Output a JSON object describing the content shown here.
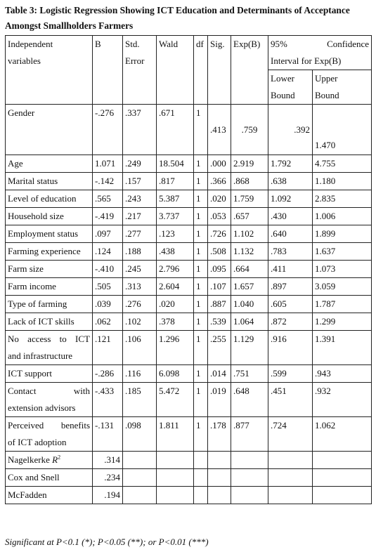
{
  "caption_line1": "Table 3: Logistic Regression Showing ICT Education and Determinants of Acceptance",
  "caption_line2": "Amongst Smallholders Farmers",
  "headers": {
    "var": [
      "Independent",
      "variables"
    ],
    "b": "B",
    "se": [
      "Std.",
      "Error"
    ],
    "wald": "Wald",
    "df": "df",
    "sig": "Sig.",
    "exp": "Exp(B)",
    "ci_left": "95%",
    "ci_right": "Confidence",
    "ci_line2": "Interval for Exp(B)",
    "lower": [
      "Lower",
      "Bound"
    ],
    "upper": [
      "Upper",
      "Bound"
    ]
  },
  "rows": [
    {
      "var": [
        "Gender"
      ],
      "b": "-.276",
      "se": ".337",
      "wald": ".671",
      "df": "1",
      "sig": ".413",
      "exp": ".759",
      "lower": ".392",
      "upper": "1.470"
    },
    {
      "var": [
        "Age"
      ],
      "b": "1.071",
      "se": ".249",
      "wald": "18.504",
      "df": "1",
      "sig": ".000",
      "exp": "2.919",
      "lower": "1.792",
      "upper": "4.755"
    },
    {
      "var": [
        "Marital status"
      ],
      "b": "-.142",
      "se": ".157",
      "wald": ".817",
      "df": "1",
      "sig": ".366",
      "exp": ".868",
      "lower": ".638",
      "upper": "1.180"
    },
    {
      "var": [
        "Level of education"
      ],
      "b": ".565",
      "se": ".243",
      "wald": "5.387",
      "df": "1",
      "sig": ".020",
      "exp": "1.759",
      "lower": "1.092",
      "upper": "2.835"
    },
    {
      "var": [
        "Household size"
      ],
      "b": "-.419",
      "se": ".217",
      "wald": "3.737",
      "df": "1",
      "sig": ".053",
      "exp": ".657",
      "lower": ".430",
      "upper": "1.006"
    },
    {
      "var": [
        "Employment status"
      ],
      "b": ".097",
      "se": ".277",
      "wald": ".123",
      "df": "1",
      "sig": ".726",
      "exp": "1.102",
      "lower": ".640",
      "upper": "1.899"
    },
    {
      "var": [
        "Farming experience"
      ],
      "b": ".124",
      "se": ".188",
      "wald": ".438",
      "df": "1",
      "sig": ".508",
      "exp": "1.132",
      "lower": ".783",
      "upper": "1.637"
    },
    {
      "var": [
        "Farm size"
      ],
      "b": "-.410",
      "se": ".245",
      "wald": "2.796",
      "df": "1",
      "sig": ".095",
      "exp": ".664",
      "lower": ".411",
      "upper": "1.073"
    },
    {
      "var": [
        "Farm income"
      ],
      "b": ".505",
      "se": ".313",
      "wald": "2.604",
      "df": "1",
      "sig": ".107",
      "exp": "1.657",
      "lower": ".897",
      "upper": "3.059"
    },
    {
      "var": [
        "Type of farming"
      ],
      "b": ".039",
      "se": ".276",
      "wald": ".020",
      "df": "1",
      "sig": ".887",
      "exp": "1.040",
      "lower": ".605",
      "upper": "1.787"
    },
    {
      "var": [
        "Lack of ICT skills"
      ],
      "b": ".062",
      "se": ".102",
      "wald": ".378",
      "df": "1",
      "sig": ".539",
      "exp": "1.064",
      "lower": ".872",
      "upper": "1.299"
    },
    {
      "var": [
        "No access to ICT",
        "and infrastructure"
      ],
      "b": ".121",
      "se": ".106",
      "wald": "1.296",
      "df": "1",
      "sig": ".255",
      "exp": "1.129",
      "lower": ".916",
      "upper": "1.391"
    },
    {
      "var": [
        "ICT support"
      ],
      "b": "-.286",
      "se": ".116",
      "wald": "6.098",
      "df": "1",
      "sig": ".014",
      "exp": ".751",
      "lower": ".599",
      "upper": ".943"
    },
    {
      "var": [
        "Contact with",
        "extension advisors"
      ],
      "b": "-.433",
      "se": ".185",
      "wald": "5.472",
      "df": "1",
      "sig": ".019",
      "exp": ".648",
      "lower": ".451",
      "upper": ".932"
    },
    {
      "var": [
        "Perceived benefits",
        "of ICT adoption"
      ],
      "b": "-.131",
      "se": ".098",
      "wald": "1.811",
      "df": "1",
      "sig": ".178",
      "exp": ".877",
      "lower": ".724",
      "upper": "1.062"
    }
  ],
  "fit": [
    {
      "label": "Nagelkerke R",
      "sup": "2",
      "value": ".314"
    },
    {
      "label": "Cox and Snell",
      "sup": "",
      "value": ".234"
    },
    {
      "label": "McFadden",
      "sup": "",
      "value": ".194"
    }
  ],
  "footnote": "Significant at P<0.1 (*); P<0.05 (**); or P<0.01 (***)"
}
